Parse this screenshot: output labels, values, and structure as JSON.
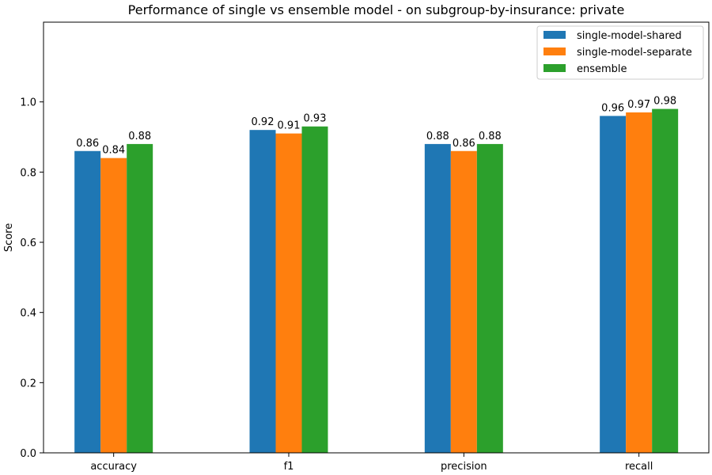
{
  "chart_data": {
    "type": "bar",
    "title": "Performance of single vs ensemble model - on subgroup-by-insurance: private",
    "xlabel": "",
    "ylabel": "Score",
    "ylim": [
      0,
      1.2272
    ],
    "yticks": [
      0.0,
      0.2,
      0.4,
      0.6,
      0.8,
      1.0
    ],
    "ytick_labels": [
      "0.0",
      "0.2",
      "0.4",
      "0.6",
      "0.8",
      "1.0"
    ],
    "categories": [
      "accuracy",
      "f1",
      "precision",
      "recall"
    ],
    "series": [
      {
        "name": "single-model-shared",
        "color": "#1f77b4",
        "values": [
          0.86,
          0.92,
          0.88,
          0.96
        ],
        "labels": [
          "0.86",
          "0.92",
          "0.88",
          "0.96"
        ]
      },
      {
        "name": "single-model-separate",
        "color": "#ff7f0e",
        "values": [
          0.84,
          0.91,
          0.86,
          0.97
        ],
        "labels": [
          "0.84",
          "0.91",
          "0.86",
          "0.97"
        ]
      },
      {
        "name": "ensemble",
        "color": "#2ca02c",
        "values": [
          0.88,
          0.93,
          0.88,
          0.98
        ],
        "labels": [
          "0.88",
          "0.93",
          "0.88",
          "0.98"
        ]
      }
    ],
    "grid": false,
    "legend_position": "top-right"
  }
}
